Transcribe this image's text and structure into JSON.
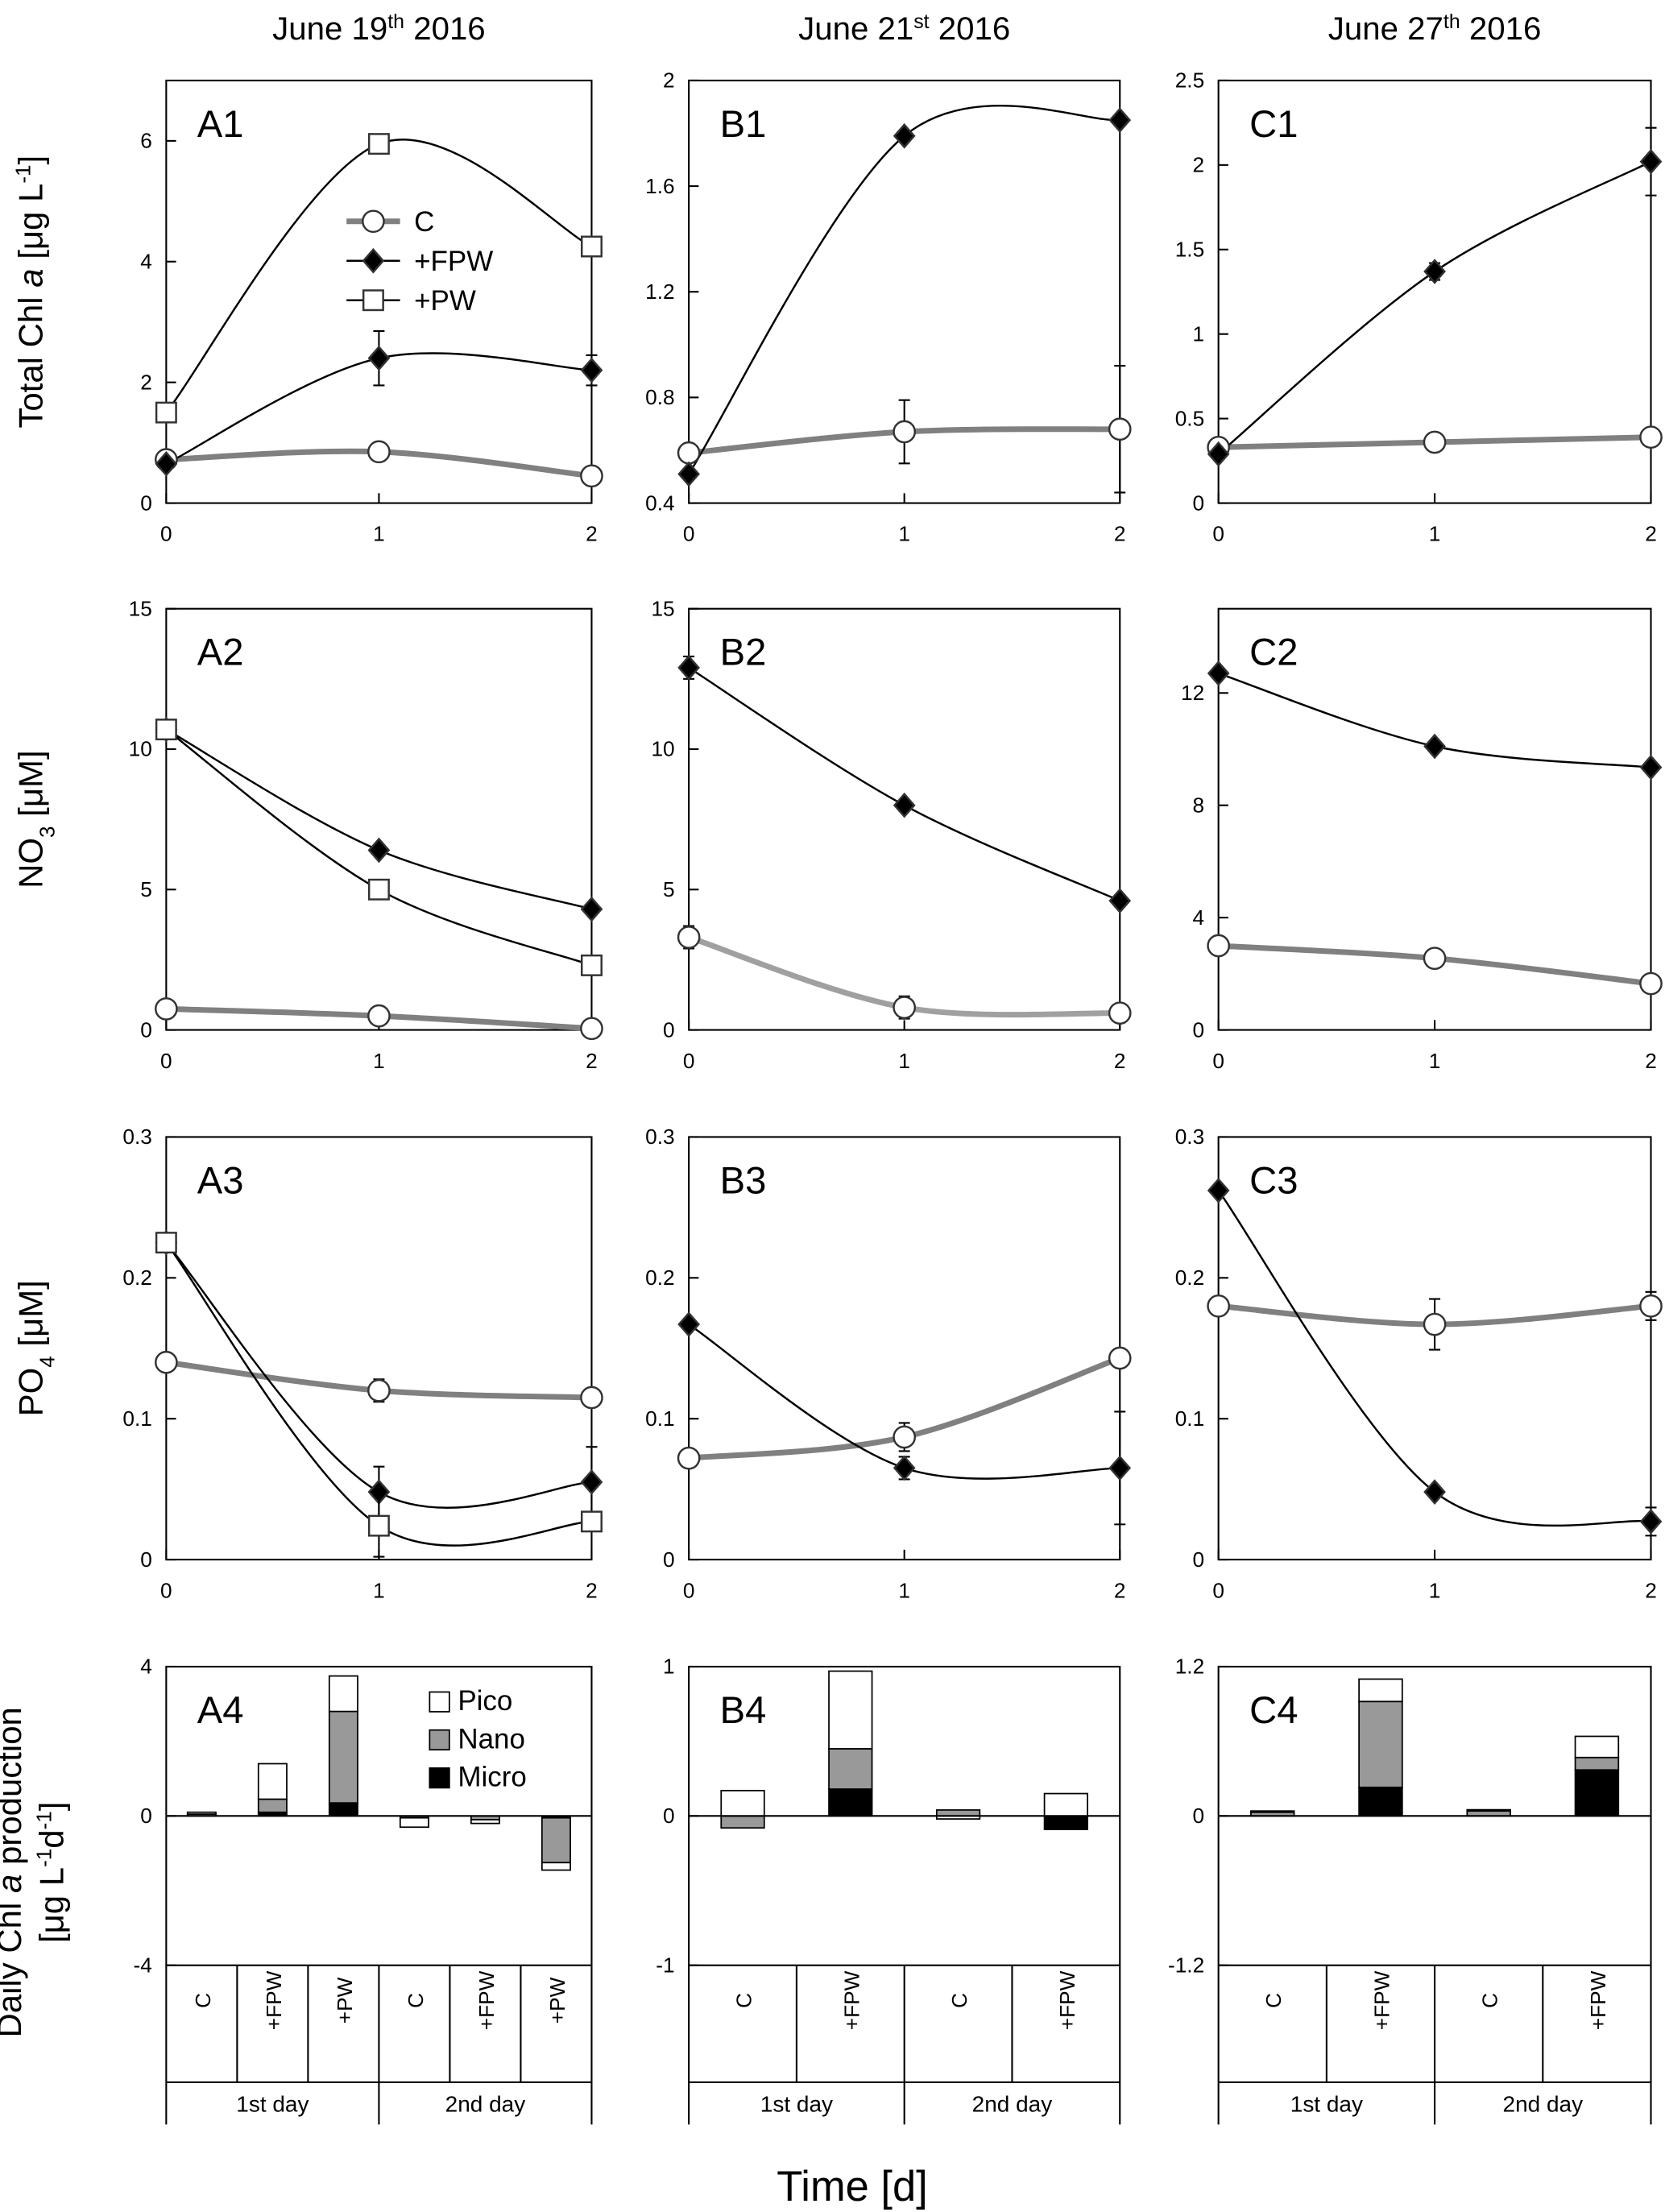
{
  "figure": {
    "column_titles": [
      [
        [
          "June 19",
          ""
        ],
        [
          "th",
          "sup"
        ],
        [
          "  2016",
          ""
        ]
      ],
      [
        [
          "June 21",
          ""
        ],
        [
          "st",
          "sup"
        ],
        [
          "  2016",
          ""
        ]
      ],
      [
        [
          "June 27",
          ""
        ],
        [
          "th",
          "sup"
        ],
        [
          "  2016",
          ""
        ]
      ]
    ],
    "row_labels": [
      [
        [
          [
            "Total Chl ",
            ""
          ],
          [
            "a",
            "i"
          ],
          [
            " [μg L",
            ""
          ],
          [
            "-1",
            "sup"
          ],
          [
            "]",
            ""
          ]
        ]
      ],
      [
        [
          [
            "NO",
            ""
          ],
          [
            "3",
            "sub"
          ],
          [
            " [μM]",
            ""
          ]
        ]
      ],
      [
        [
          [
            "PO",
            ""
          ],
          [
            "4",
            "sub"
          ],
          [
            " [μM]",
            ""
          ]
        ]
      ],
      [
        [
          [
            "Daily Chl ",
            ""
          ],
          [
            "a",
            "i"
          ],
          [
            " production",
            ""
          ]
        ],
        [
          [
            "[μg L",
            ""
          ],
          [
            "-1",
            "sup"
          ],
          [
            "d",
            ""
          ],
          [
            "-1",
            "sup"
          ],
          [
            "]",
            ""
          ]
        ]
      ]
    ],
    "xlabel": "Time [d]"
  },
  "chart_data": [
    {
      "type": "line",
      "panel": "A1",
      "x": [
        0,
        1,
        2
      ],
      "xlim": [
        0,
        2
      ],
      "xticks": [
        0,
        1,
        2
      ],
      "ylim": [
        0,
        7
      ],
      "yticks": [
        0,
        2,
        4,
        6
      ],
      "legend": "upper-center",
      "series": [
        {
          "name": "C",
          "color": "#808080",
          "marker": "circle",
          "values": [
            0.72,
            0.85,
            0.45
          ],
          "errors": [
            0.05,
            0.15,
            0.05
          ]
        },
        {
          "name": "+FPW",
          "color": "#000000",
          "marker": "diamond",
          "values": [
            0.65,
            2.4,
            2.2
          ],
          "errors": [
            0.05,
            0.45,
            0.25
          ]
        },
        {
          "name": "+PW",
          "color": "#000000",
          "marker": "square",
          "values": [
            1.5,
            5.95,
            4.25
          ],
          "errors": [
            0.1,
            0.1,
            0.1
          ]
        }
      ]
    },
    {
      "type": "line",
      "panel": "B1",
      "x": [
        0,
        1,
        2
      ],
      "xlim": [
        0,
        2
      ],
      "xticks": [
        0,
        1,
        2
      ],
      "ylim": [
        0.4,
        2
      ],
      "yticks": [
        0.4,
        0.8,
        1.2,
        1.6,
        2
      ],
      "series": [
        {
          "name": "C",
          "color": "#808080",
          "marker": "circle",
          "values": [
            0.59,
            0.67,
            0.68
          ],
          "errors": [
            0.02,
            0.12,
            0.24
          ]
        },
        {
          "name": "+FPW",
          "color": "#000000",
          "marker": "diamond",
          "values": [
            0.51,
            1.79,
            1.85
          ],
          "errors": [
            0.01,
            0.01,
            0.01
          ]
        }
      ]
    },
    {
      "type": "line",
      "panel": "C1",
      "x": [
        0,
        1,
        2
      ],
      "xlim": [
        0,
        2
      ],
      "xticks": [
        0,
        1,
        2
      ],
      "ylim": [
        0,
        2.5
      ],
      "yticks": [
        0,
        0.5,
        1,
        1.5,
        2,
        2.5
      ],
      "series": [
        {
          "name": "C",
          "color": "#808080",
          "marker": "circle",
          "values": [
            0.33,
            0.36,
            0.39
          ],
          "errors": [
            0.02,
            0.05,
            0.02
          ]
        },
        {
          "name": "+FPW",
          "color": "#000000",
          "marker": "diamond",
          "values": [
            0.29,
            1.37,
            2.02
          ],
          "errors": [
            0.03,
            0.05,
            0.2
          ]
        }
      ]
    },
    {
      "type": "line",
      "panel": "A2",
      "x": [
        0,
        1,
        2
      ],
      "xlim": [
        0,
        2
      ],
      "xticks": [
        0,
        1,
        2
      ],
      "ylim": [
        0,
        15
      ],
      "yticks": [
        0,
        5,
        10,
        15
      ],
      "series": [
        {
          "name": "C",
          "color": "#808080",
          "marker": "circle",
          "values": [
            0.75,
            0.5,
            0.05
          ],
          "errors": [
            0.1,
            0.1,
            0.05
          ]
        },
        {
          "name": "+FPW",
          "color": "#000000",
          "marker": "diamond",
          "values": [
            10.7,
            6.4,
            4.3
          ],
          "errors": [
            0.1,
            0.1,
            0.1
          ]
        },
        {
          "name": "+PW",
          "color": "#000000",
          "marker": "square",
          "values": [
            10.7,
            5.0,
            2.3
          ],
          "errors": [
            0.1,
            0.3,
            0.2
          ]
        }
      ]
    },
    {
      "type": "line",
      "panel": "B2",
      "x": [
        0,
        1,
        2
      ],
      "xlim": [
        0,
        2
      ],
      "xticks": [
        0,
        1,
        2
      ],
      "ylim": [
        0,
        15
      ],
      "yticks": [
        0,
        5,
        10,
        15
      ],
      "series": [
        {
          "name": "C",
          "color": "#a0a0a0",
          "marker": "circle",
          "values": [
            3.3,
            0.8,
            0.6
          ],
          "errors": [
            0.4,
            0.4,
            0.2
          ]
        },
        {
          "name": "+FPW",
          "color": "#000000",
          "marker": "diamond",
          "values": [
            12.9,
            8.0,
            4.6
          ],
          "errors": [
            0.4,
            0.2,
            0.2
          ]
        }
      ]
    },
    {
      "type": "line",
      "panel": "C2",
      "x": [
        0,
        1,
        2
      ],
      "xlim": [
        0,
        2
      ],
      "xticks": [
        0,
        1,
        2
      ],
      "ylim": [
        0,
        15
      ],
      "yticks": [
        0,
        4,
        8,
        12
      ],
      "series": [
        {
          "name": "C",
          "color": "#808080",
          "marker": "circle",
          "values": [
            3.0,
            2.55,
            1.65
          ],
          "errors": [
            0.1,
            0.2,
            0.1
          ]
        },
        {
          "name": "+FPW",
          "color": "#000000",
          "marker": "diamond",
          "values": [
            12.7,
            10.1,
            9.35
          ],
          "errors": [
            0.1,
            0.1,
            0.1
          ]
        }
      ]
    },
    {
      "type": "line",
      "panel": "A3",
      "x": [
        0,
        1,
        2
      ],
      "xlim": [
        0,
        2
      ],
      "xticks": [
        0,
        1,
        2
      ],
      "ylim": [
        0,
        0.3
      ],
      "yticks": [
        0,
        0.1,
        0.2,
        0.3
      ],
      "series": [
        {
          "name": "C",
          "color": "#808080",
          "marker": "circle",
          "values": [
            0.14,
            0.12,
            0.115
          ],
          "errors": [
            0.003,
            0.008,
            0.003
          ]
        },
        {
          "name": "+FPW",
          "color": "#000000",
          "marker": "diamond",
          "values": [
            0.225,
            0.048,
            0.055
          ],
          "errors": [
            0.005,
            0.018,
            0.025
          ]
        },
        {
          "name": "+PW",
          "color": "#000000",
          "marker": "square",
          "values": [
            0.225,
            0.024,
            0.027
          ],
          "errors": [
            0.005,
            0.022,
            0.003
          ]
        }
      ]
    },
    {
      "type": "line",
      "panel": "B3",
      "x": [
        0,
        1,
        2
      ],
      "xlim": [
        0,
        2
      ],
      "xticks": [
        0,
        1,
        2
      ],
      "ylim": [
        0,
        0.3
      ],
      "yticks": [
        0,
        0.1,
        0.2,
        0.3
      ],
      "series": [
        {
          "name": "C",
          "color": "#808080",
          "marker": "circle",
          "values": [
            0.072,
            0.087,
            0.143
          ],
          "errors": [
            0.003,
            0.01,
            0.003
          ]
        },
        {
          "name": "+FPW",
          "color": "#000000",
          "marker": "diamond",
          "values": [
            0.167,
            0.065,
            0.065
          ],
          "errors": [
            0.003,
            0.008,
            0.04
          ]
        }
      ]
    },
    {
      "type": "line",
      "panel": "C3",
      "x": [
        0,
        1,
        2
      ],
      "xlim": [
        0,
        2
      ],
      "xticks": [
        0,
        1,
        2
      ],
      "ylim": [
        0,
        0.3
      ],
      "yticks": [
        0,
        0.1,
        0.2,
        0.3
      ],
      "series": [
        {
          "name": "C",
          "color": "#808080",
          "marker": "circle",
          "values": [
            0.18,
            0.167,
            0.18
          ],
          "errors": [
            0.003,
            0.018,
            0.01
          ]
        },
        {
          "name": "+FPW",
          "color": "#000000",
          "marker": "diamond",
          "values": [
            0.262,
            0.048,
            0.027
          ],
          "errors": [
            0.003,
            0.003,
            0.01
          ]
        }
      ]
    },
    {
      "type": "bar",
      "panel": "A4",
      "categories": [
        "C",
        "+FPW",
        "+PW",
        "C",
        "+FPW",
        "+PW"
      ],
      "groups": [
        "1st day",
        "2nd day"
      ],
      "ylim": [
        -4,
        4
      ],
      "yticks": [
        -4,
        0,
        4
      ],
      "legend": "upper-right",
      "series": [
        {
          "name": "Pico",
          "color": "#ffffff",
          "values": [
            0.05,
            0.95,
            0.95,
            -0.25,
            -0.1,
            -0.2
          ]
        },
        {
          "name": "Nano",
          "color": "#999999",
          "values": [
            0.05,
            0.35,
            2.45,
            -0.05,
            -0.1,
            -1.2
          ]
        },
        {
          "name": "Micro",
          "color": "#000000",
          "values": [
            0,
            0.1,
            0.35,
            0,
            0,
            -0.05
          ]
        }
      ]
    },
    {
      "type": "bar",
      "panel": "B4",
      "categories": [
        "C",
        "+FPW",
        "C",
        "+FPW"
      ],
      "groups": [
        "1st day",
        "2nd day"
      ],
      "ylim": [
        -1,
        1
      ],
      "yticks": [
        -1,
        0,
        1
      ],
      "series": [
        {
          "name": "Pico",
          "color": "#ffffff",
          "values": [
            0.17,
            0.52,
            -0.02,
            0.15
          ]
        },
        {
          "name": "Nano",
          "color": "#999999",
          "values": [
            -0.08,
            0.27,
            0.04,
            0
          ]
        },
        {
          "name": "Micro",
          "color": "#000000",
          "values": [
            0,
            0.18,
            0,
            -0.09
          ]
        }
      ]
    },
    {
      "type": "bar",
      "panel": "C4",
      "categories": [
        "C",
        "+FPW",
        "C",
        "+FPW"
      ],
      "groups": [
        "1st day",
        "2nd day"
      ],
      "ylim": [
        -1.2,
        1.2
      ],
      "yticks": [
        -1.2,
        0,
        1.2
      ],
      "series": [
        {
          "name": "Pico",
          "color": "#ffffff",
          "values": [
            0.01,
            0.18,
            0.01,
            0.17
          ]
        },
        {
          "name": "Nano",
          "color": "#999999",
          "values": [
            0.03,
            0.69,
            0.04,
            0.1
          ]
        },
        {
          "name": "Micro",
          "color": "#000000",
          "values": [
            0,
            0.23,
            0,
            0.37
          ]
        }
      ]
    }
  ]
}
